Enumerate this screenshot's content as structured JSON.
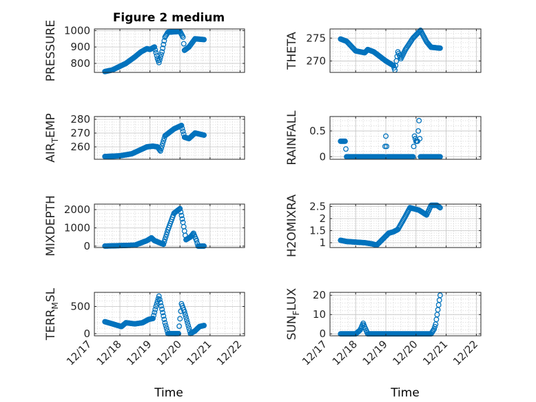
{
  "figure": {
    "title": "Figure 2 medium",
    "xlabel": "Time"
  },
  "x_tick_labels": [
    "12/17",
    "12/18",
    "12/19",
    "12/20",
    "12/21",
    "12/22"
  ],
  "marker_color": "#0072BD",
  "chart_data": [
    {
      "type": "scatter",
      "ylabel_parts": [
        "PRESSURE"
      ],
      "ylim": [
        745,
        1010
      ],
      "yticks": [
        800,
        900,
        1000
      ],
      "yticklabels": [
        "800",
        "900",
        "1000"
      ],
      "x_range": [
        "12/17",
        "12/22"
      ],
      "anchors": [
        [
          0.0,
          750
        ],
        [
          0.25,
          760
        ],
        [
          0.7,
          800
        ],
        [
          1.0,
          840
        ],
        [
          1.2,
          870
        ],
        [
          1.4,
          890
        ],
        [
          1.5,
          885
        ],
        [
          1.65,
          900
        ],
        [
          1.75,
          830
        ],
        [
          1.8,
          805
        ],
        [
          1.9,
          870
        ],
        [
          2.0,
          960
        ],
        [
          2.1,
          990
        ],
        [
          2.5,
          995
        ],
        [
          2.6,
          960
        ],
        [
          2.65,
          880
        ],
        [
          2.8,
          900
        ],
        [
          3.0,
          950
        ],
        [
          3.3,
          945
        ]
      ]
    },
    {
      "type": "scatter",
      "ylabel_parts": [
        "THETA"
      ],
      "ylim": [
        267.5,
        277
      ],
      "yticks": [
        270,
        275
      ],
      "yticklabels": [
        "270",
        "275"
      ],
      "x_range": [
        "12/17",
        "12/22"
      ],
      "anchors": [
        [
          0.0,
          274.8
        ],
        [
          0.2,
          274.3
        ],
        [
          0.5,
          272.2
        ],
        [
          0.8,
          271.8
        ],
        [
          0.9,
          272.5
        ],
        [
          1.1,
          272.0
        ],
        [
          1.5,
          270.0
        ],
        [
          1.75,
          269.0
        ],
        [
          1.8,
          268.0
        ],
        [
          1.9,
          272.0
        ],
        [
          2.0,
          270.5
        ],
        [
          2.15,
          272.5
        ],
        [
          2.4,
          275.0
        ],
        [
          2.65,
          276.7
        ],
        [
          2.85,
          274.2
        ],
        [
          3.0,
          273.0
        ],
        [
          3.3,
          272.8
        ]
      ]
    },
    {
      "type": "scatter",
      "ylabel_parts": [
        "AIR",
        "T",
        "EMP"
      ],
      "ylim": [
        251,
        282
      ],
      "yticks": [
        260,
        270,
        280
      ],
      "yticklabels": [
        "260",
        "270",
        "280"
      ],
      "x_range": [
        "12/17",
        "12/22"
      ],
      "anchors": [
        [
          0.0,
          253.0
        ],
        [
          0.5,
          253.5
        ],
        [
          0.9,
          255.0
        ],
        [
          1.4,
          260.0
        ],
        [
          1.6,
          260.5
        ],
        [
          1.75,
          260.0
        ],
        [
          1.85,
          257.0
        ],
        [
          2.0,
          268.0
        ],
        [
          2.3,
          273.0
        ],
        [
          2.55,
          275.5
        ],
        [
          2.65,
          267.0
        ],
        [
          2.8,
          266.0
        ],
        [
          3.0,
          270.0
        ],
        [
          3.3,
          268.5
        ]
      ]
    },
    {
      "type": "scatter",
      "ylabel_parts": [
        "RAINFALL"
      ],
      "ylim": [
        -0.05,
        0.78
      ],
      "yticks": [
        0,
        0.5
      ],
      "yticklabels": [
        "0",
        "0.5"
      ],
      "x_range": [
        "12/17",
        "12/22"
      ],
      "anchors": [
        [
          0.0,
          0.3
        ],
        [
          0.15,
          0.3
        ],
        [
          0.2,
          0.0
        ],
        [
          1.45,
          0.0
        ],
        [
          1.5,
          0.4
        ],
        [
          1.55,
          0.0
        ],
        [
          2.4,
          0.0
        ],
        [
          2.45,
          0.4
        ],
        [
          2.5,
          0.3
        ],
        [
          2.55,
          0.3
        ],
        [
          2.6,
          0.7
        ],
        [
          2.65,
          0.0
        ],
        [
          3.3,
          0.0
        ]
      ]
    },
    {
      "type": "scatter",
      "ylabel_parts": [
        "MIXDEPTH"
      ],
      "ylim": [
        -80,
        2300
      ],
      "yticks": [
        0,
        1000,
        2000
      ],
      "yticklabels": [
        "0",
        "1000",
        "2000"
      ],
      "x_range": [
        "12/17",
        "12/22"
      ],
      "anchors": [
        [
          0.0,
          0
        ],
        [
          1.0,
          50
        ],
        [
          1.4,
          300
        ],
        [
          1.55,
          450
        ],
        [
          1.65,
          300
        ],
        [
          1.8,
          200
        ],
        [
          1.95,
          100
        ],
        [
          2.1,
          900
        ],
        [
          2.3,
          1800
        ],
        [
          2.5,
          2050
        ],
        [
          2.6,
          1300
        ],
        [
          2.7,
          350
        ],
        [
          2.85,
          500
        ],
        [
          2.95,
          700
        ],
        [
          3.05,
          300
        ],
        [
          3.1,
          0
        ],
        [
          3.3,
          0
        ]
      ]
    },
    {
      "type": "scatter",
      "ylabel_parts": [
        "H2OMIXRA"
      ],
      "ylim": [
        0.8,
        2.6
      ],
      "yticks": [
        1,
        1.5,
        2,
        2.5
      ],
      "yticklabels": [
        "1",
        "1.5",
        "2",
        "2.5"
      ],
      "x_range": [
        "12/17",
        "12/22"
      ],
      "anchors": [
        [
          0.0,
          1.1
        ],
        [
          0.2,
          1.05
        ],
        [
          0.8,
          1.0
        ],
        [
          1.05,
          0.95
        ],
        [
          1.2,
          0.9
        ],
        [
          1.4,
          1.15
        ],
        [
          1.6,
          1.4
        ],
        [
          1.75,
          1.45
        ],
        [
          1.9,
          1.55
        ],
        [
          2.15,
          2.1
        ],
        [
          2.3,
          2.45
        ],
        [
          2.6,
          2.35
        ],
        [
          2.85,
          2.15
        ],
        [
          3.0,
          2.55
        ],
        [
          3.2,
          2.55
        ],
        [
          3.3,
          2.45
        ]
      ]
    },
    {
      "type": "scatter",
      "ylabel_parts": [
        "TERR",
        "M",
        "SL"
      ],
      "ylim": [
        -40,
        760
      ],
      "yticks": [
        0,
        500
      ],
      "yticklabels": [
        "0",
        "500"
      ],
      "x_range": [
        "12/17",
        "12/22"
      ],
      "anchors": [
        [
          0.0,
          220
        ],
        [
          0.25,
          180
        ],
        [
          0.55,
          130
        ],
        [
          0.7,
          200
        ],
        [
          1.0,
          180
        ],
        [
          1.25,
          200
        ],
        [
          1.45,
          260
        ],
        [
          1.6,
          280
        ],
        [
          1.7,
          500
        ],
        [
          1.8,
          690
        ],
        [
          1.9,
          450
        ],
        [
          2.0,
          200
        ],
        [
          2.1,
          0
        ],
        [
          2.45,
          0
        ],
        [
          2.55,
          550
        ],
        [
          2.65,
          400
        ],
        [
          2.75,
          200
        ],
        [
          2.85,
          0
        ],
        [
          3.0,
          50
        ],
        [
          3.15,
          130
        ],
        [
          3.3,
          150
        ]
      ]
    },
    {
      "type": "scatter",
      "ylabel_parts": [
        "SUN",
        "F",
        "LUX"
      ],
      "ylim": [
        -1,
        21.5
      ],
      "yticks": [
        0,
        10,
        20
      ],
      "yticklabels": [
        "0",
        "10",
        "20"
      ],
      "x_range": [
        "12/17",
        "12/22"
      ],
      "anchors": [
        [
          0.0,
          0
        ],
        [
          0.5,
          0
        ],
        [
          0.65,
          2
        ],
        [
          0.75,
          5.5
        ],
        [
          0.8,
          3.5
        ],
        [
          0.9,
          0
        ],
        [
          3.0,
          0
        ],
        [
          3.1,
          2.5
        ],
        [
          3.15,
          5
        ],
        [
          3.25,
          15
        ],
        [
          3.3,
          20
        ]
      ]
    }
  ]
}
